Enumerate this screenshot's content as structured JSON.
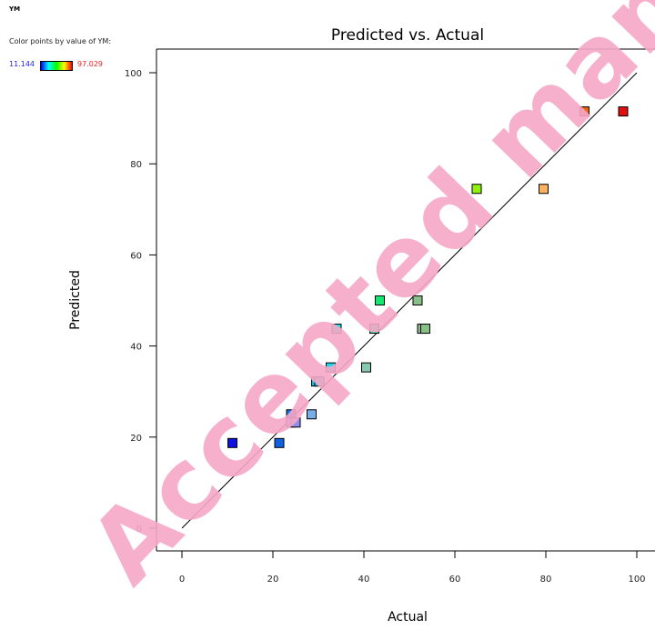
{
  "header": {
    "panel_title": "YM",
    "color_caption": "Color points by value of YM:",
    "legend_min": "11.144",
    "legend_max": "97.029"
  },
  "watermark": "Accepted manuscript",
  "colors": {
    "line": "#000000",
    "gradient": [
      "#0000ff",
      "#00ffff",
      "#00ff00",
      "#ffff00",
      "#ff0000"
    ]
  },
  "chart_data": {
    "type": "scatter",
    "title": "Predicted vs. Actual",
    "xlabel": "Actual",
    "ylabel": "Predicted",
    "xlim": [
      -5,
      105
    ],
    "ylim": [
      -5,
      105
    ],
    "xticks": [
      0,
      20,
      40,
      60,
      80,
      100
    ],
    "yticks": [
      0,
      20,
      40,
      60,
      80,
      100
    ],
    "reference_line": [
      [
        0,
        0
      ],
      [
        100,
        100
      ]
    ],
    "grid": false,
    "points": [
      {
        "x": 11.1,
        "y": 18.7,
        "color": "#1010e0"
      },
      {
        "x": 21.4,
        "y": 18.7,
        "color": "#1060e0"
      },
      {
        "x": 24.0,
        "y": 25.0,
        "color": "#1870e8"
      },
      {
        "x": 24.0,
        "y": 23.2,
        "color": "#8f8ef0"
      },
      {
        "x": 25.0,
        "y": 23.2,
        "color": "#8f8ef0"
      },
      {
        "x": 28.5,
        "y": 25.0,
        "color": "#78aee8"
      },
      {
        "x": 29.5,
        "y": 32.2,
        "color": "#10b8e8"
      },
      {
        "x": 30.2,
        "y": 32.2,
        "color": "#18c8e8"
      },
      {
        "x": 32.7,
        "y": 35.3,
        "color": "#18d8f0"
      },
      {
        "x": 34.0,
        "y": 43.8,
        "color": "#18e0f0"
      },
      {
        "x": 40.5,
        "y": 35.3,
        "color": "#86c8b0"
      },
      {
        "x": 42.3,
        "y": 43.8,
        "color": "#10e890"
      },
      {
        "x": 43.5,
        "y": 50.0,
        "color": "#10e870"
      },
      {
        "x": 51.8,
        "y": 50.0,
        "color": "#88c088"
      },
      {
        "x": 52.8,
        "y": 43.8,
        "color": "#88c088"
      },
      {
        "x": 53.5,
        "y": 43.8,
        "color": "#88c088"
      },
      {
        "x": 64.8,
        "y": 74.5,
        "color": "#90f010"
      },
      {
        "x": 79.5,
        "y": 74.5,
        "color": "#ffb060"
      },
      {
        "x": 88.5,
        "y": 91.5,
        "color": "#f06010"
      },
      {
        "x": 97.0,
        "y": 91.5,
        "color": "#e01010"
      }
    ]
  }
}
